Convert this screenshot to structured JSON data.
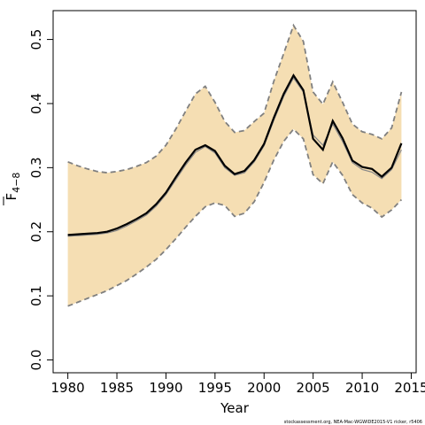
{
  "chart_data": {
    "type": "line",
    "xlabel": "Year",
    "ylabel": "F",
    "ylabel_subscript": "4−8",
    "xlim": [
      1978.5,
      2015.5
    ],
    "ylim": [
      -0.02,
      0.545
    ],
    "x_ticks": [
      1980,
      1985,
      1990,
      1995,
      2000,
      2005,
      2010,
      2015
    ],
    "y_ticks": [
      0.0,
      0.1,
      0.2,
      0.3,
      0.4,
      0.5
    ],
    "y_tick_labels": [
      "0.0",
      "0.1",
      "0.2",
      "0.3",
      "0.4",
      "0.5"
    ],
    "x": [
      1980,
      1981,
      1982,
      1983,
      1984,
      1985,
      1986,
      1987,
      1988,
      1989,
      1990,
      1991,
      1992,
      1993,
      1994,
      1995,
      1996,
      1997,
      1998,
      1999,
      2000,
      2001,
      2002,
      2003,
      2004,
      2005,
      2006,
      2007,
      2008,
      2009,
      2010,
      2011,
      2012,
      2013,
      2014
    ],
    "series": [
      {
        "role": "estimate",
        "color": "#000000",
        "values": [
          0.195,
          0.196,
          0.197,
          0.198,
          0.2,
          0.205,
          0.212,
          0.22,
          0.229,
          0.243,
          0.261,
          0.285,
          0.308,
          0.328,
          0.335,
          0.326,
          0.303,
          0.29,
          0.295,
          0.312,
          0.337,
          0.378,
          0.415,
          0.444,
          0.421,
          0.345,
          0.328,
          0.373,
          0.346,
          0.311,
          0.301,
          0.298,
          0.286,
          0.3,
          0.338
        ]
      },
      {
        "role": "median",
        "color": "#888888",
        "values": [
          0.193,
          0.194,
          0.195,
          0.196,
          0.198,
          0.202,
          0.209,
          0.217,
          0.226,
          0.24,
          0.258,
          0.281,
          0.304,
          0.324,
          0.333,
          0.323,
          0.3,
          0.288,
          0.292,
          0.309,
          0.334,
          0.374,
          0.411,
          0.44,
          0.418,
          0.351,
          0.335,
          0.368,
          0.341,
          0.308,
          0.297,
          0.293,
          0.283,
          0.297,
          0.328
        ]
      },
      {
        "role": "upper",
        "color": "#808080",
        "values": [
          0.309,
          0.303,
          0.298,
          0.294,
          0.292,
          0.294,
          0.297,
          0.302,
          0.308,
          0.318,
          0.335,
          0.36,
          0.388,
          0.415,
          0.427,
          0.402,
          0.372,
          0.355,
          0.358,
          0.372,
          0.385,
          0.435,
          0.478,
          0.522,
          0.497,
          0.418,
          0.399,
          0.434,
          0.402,
          0.368,
          0.356,
          0.352,
          0.345,
          0.362,
          0.418
        ]
      },
      {
        "role": "lower",
        "color": "#808080",
        "values": [
          0.084,
          0.09,
          0.096,
          0.102,
          0.108,
          0.116,
          0.124,
          0.134,
          0.145,
          0.157,
          0.172,
          0.189,
          0.207,
          0.224,
          0.239,
          0.245,
          0.241,
          0.224,
          0.229,
          0.247,
          0.277,
          0.312,
          0.341,
          0.36,
          0.345,
          0.289,
          0.275,
          0.309,
          0.288,
          0.258,
          0.245,
          0.237,
          0.223,
          0.234,
          0.25
        ]
      }
    ],
    "band_color": "#f5deb3",
    "grid": false,
    "legend": "none"
  },
  "footer": {
    "source": "stockassessment.org, NEA-Mac-WGWIDE2015-V1 ricker, r5406"
  }
}
